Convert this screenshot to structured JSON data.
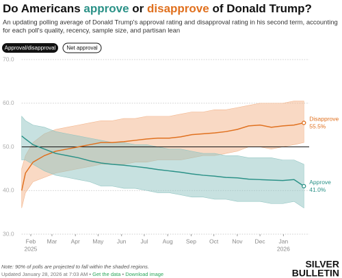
{
  "chart_data": {
    "type": "line",
    "title_parts": [
      {
        "text": "Do Americans ",
        "color": "#111111"
      },
      {
        "text": "approve",
        "color": "#2a9187"
      },
      {
        "text": " or ",
        "color": "#111111"
      },
      {
        "text": "disapprove",
        "color": "#e0701e"
      },
      {
        "text": " of Donald Trump?",
        "color": "#111111"
      }
    ],
    "subtitle_lines": [
      "An updating polling average of Donald Trump's approval rating and disapproval rating in his second term, accounting",
      "for each poll's quality, recency, sample size, and partisan lean"
    ],
    "buttons": [
      "Approval/disapproval",
      "Net approval"
    ],
    "x": [
      0,
      5,
      15,
      30,
      45,
      60,
      75,
      90,
      105,
      120,
      135,
      150,
      165,
      180,
      195,
      210,
      225,
      240,
      255,
      270,
      285,
      300,
      315,
      330,
      345,
      360,
      373
    ],
    "xlim": [
      0,
      380
    ],
    "xticks": [
      {
        "value": 12,
        "label": "Feb"
      },
      {
        "value": 40,
        "label": "Mar"
      },
      {
        "value": 71,
        "label": "Apr"
      },
      {
        "value": 101,
        "label": "May"
      },
      {
        "value": 132,
        "label": "Jun"
      },
      {
        "value": 162,
        "label": "Jul"
      },
      {
        "value": 193,
        "label": "Aug"
      },
      {
        "value": 224,
        "label": "Sep"
      },
      {
        "value": 254,
        "label": "Oct"
      },
      {
        "value": 285,
        "label": "Nov"
      },
      {
        "value": 315,
        "label": "Dec"
      },
      {
        "value": 346,
        "label": "Jan"
      }
    ],
    "year_labels": [
      {
        "value": 12,
        "label": "2025"
      },
      {
        "value": 346,
        "label": "2026"
      }
    ],
    "ylim": [
      30,
      70
    ],
    "yticks": [
      {
        "value": 30,
        "label": "30.0"
      },
      {
        "value": 40,
        "label": "40.0"
      },
      {
        "value": 50,
        "label": "50.0"
      },
      {
        "value": 60,
        "label": "60.0"
      },
      {
        "value": 70,
        "label": "70.0"
      }
    ],
    "grid": true,
    "reference_line": 50,
    "series": [
      {
        "name": "Disapprove",
        "color": "#e0701e",
        "band_color": "#f3b48a",
        "values": [
          40,
          44,
          46.5,
          48,
          49,
          49.5,
          50,
          50.5,
          51,
          51,
          51.2,
          51.5,
          51.8,
          52,
          52,
          52.3,
          52.8,
          53,
          53.2,
          53.5,
          54,
          54.8,
          55,
          54.5,
          54.8,
          55,
          55.5
        ],
        "upper": [
          45,
          48,
          51,
          53,
          54,
          54.5,
          55,
          55.5,
          56,
          56,
          56.5,
          56.5,
          57,
          57,
          57,
          57.5,
          58,
          58,
          58.5,
          58.5,
          59,
          59.5,
          60,
          60,
          60,
          60.5,
          60.5
        ],
        "lower": [
          36,
          39.5,
          42,
          43,
          44,
          44.5,
          45,
          45.5,
          46,
          46,
          46,
          46.5,
          46.5,
          47,
          47,
          47,
          47.5,
          48,
          48,
          48.5,
          49,
          50,
          50,
          49.5,
          50,
          50.5,
          51
        ],
        "value_labels": [
          null,
          null,
          null,
          null,
          null,
          null,
          null,
          null,
          null,
          null,
          null,
          null,
          null,
          null,
          null,
          null,
          null,
          null,
          null,
          null,
          null,
          null,
          null,
          null,
          null,
          null,
          "55.5%"
        ]
      },
      {
        "name": "Approve",
        "color": "#2a9187",
        "band_color": "#8fc4c1",
        "values": [
          52.5,
          51.8,
          50.5,
          49.5,
          48.5,
          48,
          47.5,
          46.8,
          46.3,
          46,
          45.8,
          45.5,
          45.2,
          44.8,
          44.5,
          44.2,
          43.8,
          43.5,
          43.3,
          43,
          42.9,
          42.6,
          42.5,
          42.4,
          42.3,
          42.5,
          41
        ],
        "upper": [
          57,
          56,
          55,
          54.5,
          53.5,
          53,
          52.5,
          52,
          51.5,
          51,
          51,
          50.5,
          50.5,
          50,
          49.5,
          49.5,
          49,
          48.5,
          48.5,
          48,
          48,
          47.5,
          47.5,
          47.5,
          47,
          47,
          46
        ],
        "lower": [
          47,
          47,
          46,
          44.5,
          43.5,
          43,
          42.5,
          42,
          41,
          41,
          40.5,
          40.5,
          40,
          39.5,
          39.5,
          39,
          38.5,
          38.5,
          38,
          38,
          37.5,
          37.5,
          37.5,
          37,
          37,
          37.5,
          36
        ],
        "value_labels": [
          null,
          null,
          null,
          null,
          null,
          null,
          null,
          null,
          null,
          null,
          null,
          null,
          null,
          null,
          null,
          null,
          null,
          null,
          null,
          null,
          null,
          null,
          null,
          null,
          null,
          null,
          "41.0%"
        ]
      }
    ],
    "note": "Note: 90% of polls are projected to fall within the shaded regions.",
    "updated": "Updated January 28, 2026 at 7:03 AM",
    "links": [
      "Get the data",
      "Download image"
    ],
    "logo": [
      "SILVER",
      "BULLETIN"
    ]
  }
}
